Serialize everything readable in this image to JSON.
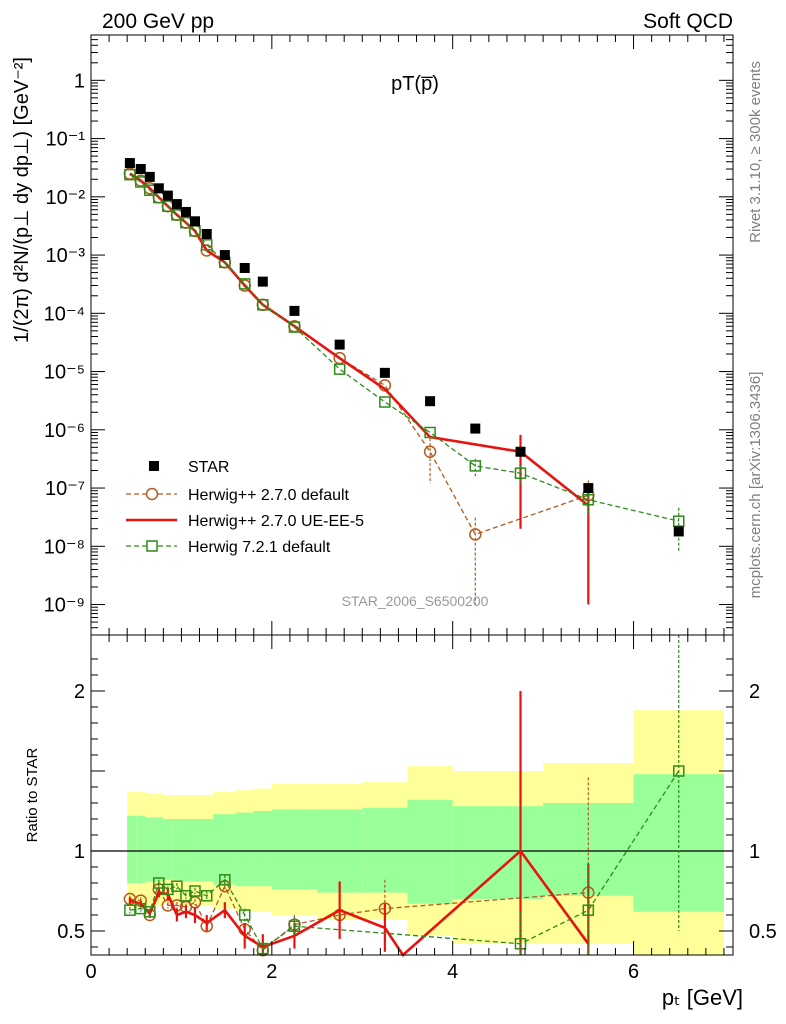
{
  "header": {
    "left": "200 GeV pp",
    "right": "Soft QCD",
    "plot_title": "pT(p̅)",
    "side_label_top": "Rivet 3.1.10, ≥ 300k events",
    "side_label_bottom": "mcplots.cern.ch [arXiv:1306.3436]",
    "watermark": "STAR_2006_S6500200"
  },
  "colors": {
    "star": "#000000",
    "herwig_pp_default": "#b35a1f",
    "herwig_pp_ueee5": "#e8130f",
    "herwig7_default": "#2e8b1a",
    "band_yellow": "#ffff99",
    "band_green": "#99ff99"
  },
  "chart_data": [
    {
      "type": "scatter",
      "panel": "main",
      "ylabel": "1/(2π) d²N/(p⊥ dy dp⊥) [GeV⁻²]",
      "yscale": "log",
      "xlim": [
        0,
        7.1
      ],
      "ylim": [
        3e-10,
        6
      ],
      "y_ticks": [
        "10⁻⁹",
        "10⁻⁸",
        "10⁻⁷",
        "10⁻⁶",
        "10⁻⁵",
        "10⁻⁴",
        "10⁻³",
        "10⁻²",
        "10⁻¹",
        "1"
      ],
      "legend_position": "bottom-left",
      "series": [
        {
          "name": "STAR",
          "marker": "filled-square",
          "x": [
            0.43,
            0.55,
            0.65,
            0.75,
            0.85,
            0.95,
            1.05,
            1.15,
            1.28,
            1.48,
            1.7,
            1.9,
            2.25,
            2.75,
            3.25,
            3.75,
            4.25,
            4.75,
            5.5,
            6.5
          ],
          "y": [
            0.038,
            0.03,
            0.022,
            0.014,
            0.0105,
            0.0075,
            0.0055,
            0.0038,
            0.0023,
            0.001,
            0.0006,
            0.00035,
            0.00011,
            2.9e-05,
            9.5e-06,
            3.1e-06,
            1.05e-06,
            4.2e-07,
            1e-07,
            1.8e-08
          ]
        },
        {
          "name": "Herwig++ 2.7.0 default",
          "marker": "open-circle",
          "line": "dashed",
          "x": [
            0.43,
            0.55,
            0.65,
            0.75,
            0.85,
            0.95,
            1.05,
            1.15,
            1.28,
            1.48,
            1.7,
            1.9,
            2.25,
            2.75,
            3.25,
            3.75,
            4.25,
            5.5
          ],
          "y": [
            0.025,
            0.019,
            0.014,
            0.0098,
            0.0069,
            0.0049,
            0.0036,
            0.0026,
            0.0012,
            0.00075,
            0.0003,
            0.00014,
            6e-05,
            1.7e-05,
            5.8e-06,
            4.2e-07,
            1.6e-08,
            7.5e-08
          ],
          "yerr": [
            0,
            0,
            0,
            0,
            0,
            0,
            0,
            0,
            0,
            0,
            0,
            0,
            0,
            0,
            0,
            3e-07,
            1.5e-08,
            6e-08
          ]
        },
        {
          "name": "Herwig++ 2.7.0 UE-EE-5",
          "marker": "none",
          "line": "solid",
          "x": [
            0.43,
            0.55,
            0.65,
            0.75,
            0.85,
            0.95,
            1.05,
            1.15,
            1.28,
            1.48,
            1.7,
            1.9,
            2.25,
            2.75,
            3.25,
            3.75,
            4.75,
            5.5
          ],
          "y": [
            0.025,
            0.019,
            0.014,
            0.0098,
            0.0069,
            0.0049,
            0.0036,
            0.0026,
            0.0012,
            0.00075,
            0.0003,
            0.00014,
            6e-05,
            1.7e-05,
            5e-06,
            7.5e-07,
            4.2e-07,
            5e-08
          ],
          "yerr": [
            0,
            0,
            0,
            0,
            0,
            0,
            0,
            0,
            0,
            0,
            0,
            0,
            0,
            0,
            0,
            0,
            4e-07,
            4.9e-08
          ]
        },
        {
          "name": "Herwig 7.2.1 default",
          "marker": "open-square",
          "line": "dashed",
          "x": [
            0.43,
            0.55,
            0.65,
            0.75,
            0.85,
            0.95,
            1.05,
            1.15,
            1.28,
            1.48,
            1.7,
            1.9,
            2.25,
            2.75,
            3.25,
            3.75,
            4.25,
            4.75,
            5.5,
            6.5
          ],
          "y": [
            0.024,
            0.018,
            0.013,
            0.0097,
            0.0069,
            0.0049,
            0.0036,
            0.0026,
            0.0015,
            0.00075,
            0.00032,
            0.00014,
            5.8e-05,
            1.1e-05,
            3e-06,
            9e-07,
            2.4e-07,
            1.8e-07,
            6.3e-08,
            2.7e-08
          ],
          "yerr": [
            0,
            0,
            0,
            0,
            0,
            0,
            0,
            0,
            0,
            0,
            0,
            0,
            0,
            0,
            0,
            0,
            8e-08,
            6e-08,
            3e-08,
            1.9e-08
          ]
        }
      ]
    },
    {
      "type": "line",
      "panel": "ratio",
      "xlabel": "pₜ [GeV]",
      "ylabel": "Ratio to STAR",
      "xlim": [
        0,
        7.1
      ],
      "ylim": [
        0.35,
        2.35
      ],
      "x_ticks": [
        0,
        2,
        4,
        6
      ],
      "y_ticks": [
        0.5,
        1,
        1.5,
        2
      ],
      "y_tick_labels": [
        "0.5",
        "1",
        "2"
      ],
      "reference_line": 1,
      "bands": {
        "edges": [
          0.4,
          0.5,
          0.6,
          0.7,
          0.8,
          0.9,
          1.0,
          1.1,
          1.2,
          1.35,
          1.6,
          1.8,
          2.0,
          2.5,
          3.0,
          3.5,
          4.0,
          4.5,
          5.0,
          6.0,
          7.0
        ],
        "yellow_low": [
          0.65,
          0.65,
          0.66,
          0.66,
          0.67,
          0.67,
          0.66,
          0.66,
          0.66,
          0.64,
          0.62,
          0.62,
          0.6,
          0.57,
          0.57,
          0.47,
          0.42,
          0.42,
          0.42,
          0.35
        ],
        "yellow_high": [
          1.37,
          1.37,
          1.36,
          1.36,
          1.35,
          1.35,
          1.35,
          1.35,
          1.35,
          1.37,
          1.38,
          1.39,
          1.42,
          1.42,
          1.43,
          1.53,
          1.5,
          1.5,
          1.55,
          1.88
        ],
        "green_low": [
          0.8,
          0.8,
          0.81,
          0.81,
          0.82,
          0.82,
          0.81,
          0.81,
          0.81,
          0.79,
          0.78,
          0.78,
          0.76,
          0.74,
          0.74,
          0.67,
          0.7,
          0.7,
          0.72,
          0.62
        ],
        "green_high": [
          1.22,
          1.22,
          1.21,
          1.21,
          1.2,
          1.2,
          1.2,
          1.2,
          1.2,
          1.23,
          1.24,
          1.25,
          1.26,
          1.26,
          1.27,
          1.32,
          1.28,
          1.28,
          1.3,
          1.48
        ]
      },
      "series": [
        {
          "name": "Herwig++ 2.7.0 default",
          "x": [
            0.43,
            0.55,
            0.65,
            0.75,
            0.85,
            0.95,
            1.05,
            1.15,
            1.28,
            1.48,
            1.7,
            1.9,
            2.25,
            2.75,
            3.25,
            5.5
          ],
          "y": [
            0.7,
            0.69,
            0.6,
            0.76,
            0.66,
            0.66,
            0.65,
            0.68,
            0.53,
            0.78,
            0.51,
            0.38,
            0.54,
            0.6,
            0.64,
            0.74
          ],
          "yerr": [
            0.02,
            0.02,
            0.02,
            0.02,
            0.02,
            0.02,
            0.02,
            0.02,
            0.03,
            0.03,
            0.04,
            0.04,
            0.06,
            0.1,
            0.18,
            0.72
          ]
        },
        {
          "name": "Herwig++ 2.7.0 UE-EE-5",
          "x": [
            0.43,
            0.55,
            0.65,
            0.75,
            0.85,
            0.95,
            1.05,
            1.15,
            1.28,
            1.48,
            1.7,
            1.9,
            2.25,
            2.75,
            3.25,
            3.45,
            4.75,
            5.5
          ],
          "y": [
            0.69,
            0.67,
            0.61,
            0.74,
            0.73,
            0.6,
            0.62,
            0.6,
            0.55,
            0.63,
            0.47,
            0.4,
            0.47,
            0.63,
            0.52,
            0.35,
            1.0,
            0.42
          ],
          "yerr": [
            0.02,
            0.02,
            0.02,
            0.03,
            0.04,
            0.04,
            0.04,
            0.05,
            0.05,
            0.05,
            0.08,
            0.08,
            0.08,
            0.18,
            0.15,
            0,
            1.0,
            0.5
          ]
        },
        {
          "name": "Herwig 7.2.1 default",
          "x": [
            0.43,
            0.55,
            0.65,
            0.75,
            0.85,
            0.95,
            1.05,
            1.15,
            1.28,
            1.48,
            1.7,
            1.9,
            2.25,
            4.75,
            5.5,
            6.5
          ],
          "y": [
            0.63,
            0.64,
            0.62,
            0.8,
            0.76,
            0.78,
            0.72,
            0.75,
            0.72,
            0.82,
            0.6,
            0.39,
            0.53,
            0.42,
            0.63,
            1.5
          ],
          "yerr": [
            0.02,
            0.02,
            0.02,
            0.02,
            0.02,
            0.02,
            0.02,
            0.02,
            0.03,
            0.03,
            0.04,
            0.04,
            0.06,
            0.2,
            0.3,
            1.0
          ]
        }
      ]
    }
  ]
}
